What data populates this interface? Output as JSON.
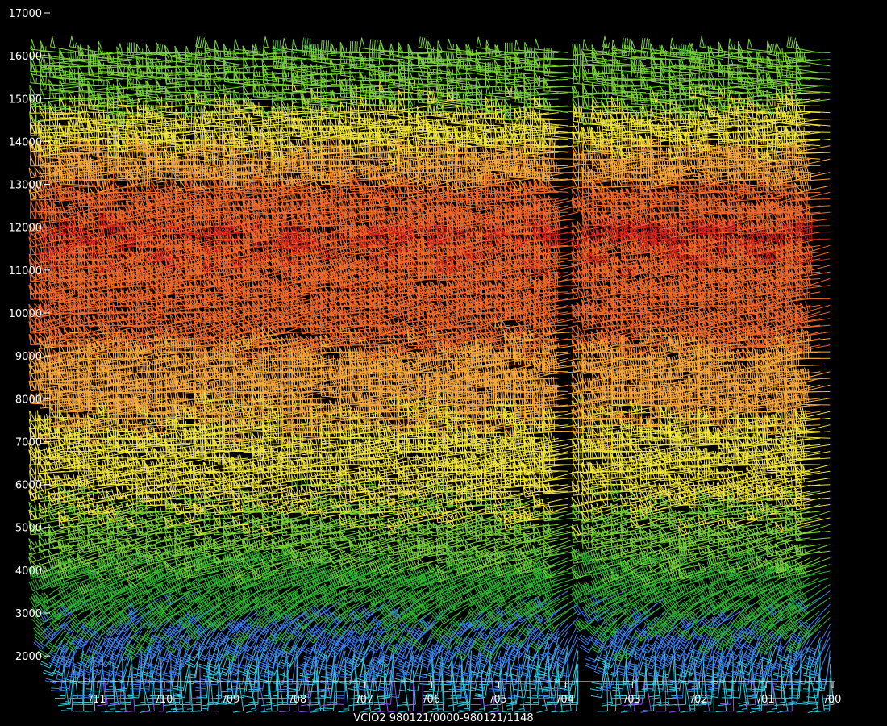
{
  "chart_data": {
    "type": "wind-barb time-height profile",
    "caption": "VCIO2 980121/0000-980121/1148",
    "y_ticks": [
      2000,
      3000,
      4000,
      5000,
      6000,
      7000,
      8000,
      9000,
      10000,
      11000,
      12000,
      13000,
      14000,
      15000,
      16000,
      17000
    ],
    "x_ticks": [
      "/11",
      "/10",
      "/09",
      "/08",
      "/07",
      "/06",
      "/05",
      "/04",
      "/03",
      "/02",
      "/01",
      "/00"
    ],
    "ylim": [
      1400,
      17000
    ],
    "x_direction": "time decreases to the right (hours before 12 UTC)",
    "gaps": [
      {
        "from": -3.5,
        "to": -3.7
      },
      {
        "from": -1.5,
        "to": -1.6
      }
    ],
    "speed_color_scale": [
      {
        "max_speed": 10,
        "color": "#8a55e8"
      },
      {
        "max_speed": 20,
        "color": "#33c8e0"
      },
      {
        "max_speed": 30,
        "color": "#3c82f0"
      },
      {
        "max_speed": 45,
        "color": "#2fb832"
      },
      {
        "max_speed": 60,
        "color": "#7ad43a"
      },
      {
        "max_speed": 80,
        "color": "#f2e63a"
      },
      {
        "max_speed": 100,
        "color": "#f7a83a"
      },
      {
        "max_speed": 130,
        "color": "#f06a2a"
      },
      {
        "max_speed": 999,
        "color": "#d8221e"
      }
    ],
    "wind_profile": [
      {
        "height": 1500,
        "speed": 12,
        "direction": 175
      },
      {
        "height": 2000,
        "speed": 18,
        "direction": 185
      },
      {
        "height": 2500,
        "speed": 24,
        "direction": 205
      },
      {
        "height": 3000,
        "speed": 30,
        "direction": 225
      },
      {
        "height": 3500,
        "speed": 35,
        "direction": 240
      },
      {
        "height": 4000,
        "speed": 42,
        "direction": 250
      },
      {
        "height": 4500,
        "speed": 50,
        "direction": 255
      },
      {
        "height": 5000,
        "speed": 55,
        "direction": 258
      },
      {
        "height": 6000,
        "speed": 65,
        "direction": 262
      },
      {
        "height": 7000,
        "speed": 75,
        "direction": 265
      },
      {
        "height": 8000,
        "speed": 85,
        "direction": 265
      },
      {
        "height": 9000,
        "speed": 95,
        "direction": 262
      },
      {
        "height": 10000,
        "speed": 110,
        "direction": 260
      },
      {
        "height": 11000,
        "speed": 125,
        "direction": 260
      },
      {
        "height": 12000,
        "speed": 130,
        "direction": 262
      },
      {
        "height": 13000,
        "speed": 100,
        "direction": 265
      },
      {
        "height": 14000,
        "speed": 75,
        "direction": 268
      },
      {
        "height": 15000,
        "speed": 55,
        "direction": 270
      },
      {
        "height": 16200,
        "speed": 50,
        "direction": 272
      }
    ]
  }
}
